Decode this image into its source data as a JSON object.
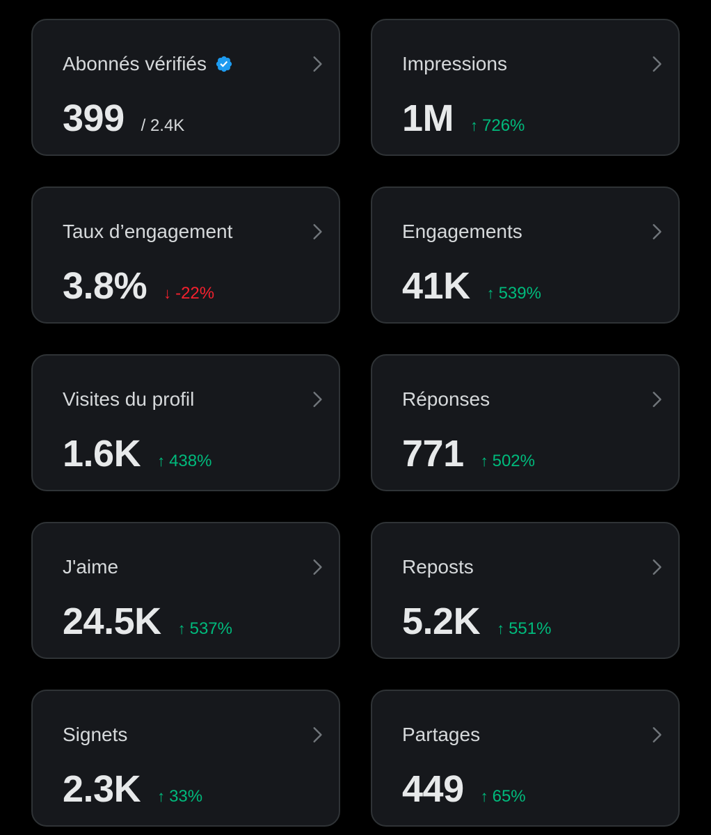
{
  "colors": {
    "background": "#000000",
    "card": "#16181c",
    "card_border": "#2f3336",
    "text": "#e7e9ea",
    "positive": "#00ba7c",
    "negative": "#f4212e",
    "verified": "#1d9bf0"
  },
  "cards": [
    {
      "label": "Abonnés vérifiés",
      "value": "399",
      "sub": "/ 2.4K",
      "trend": "neutral",
      "arrow": "",
      "icon": "verified-badge-icon"
    },
    {
      "label": "Impressions",
      "value": "1M",
      "sub": "726%",
      "trend": "up",
      "arrow": "↑"
    },
    {
      "label": "Taux d’engagement",
      "value": "3.8%",
      "sub": "-22%",
      "trend": "down",
      "arrow": "↓"
    },
    {
      "label": "Engagements",
      "value": "41K",
      "sub": "539%",
      "trend": "up",
      "arrow": "↑"
    },
    {
      "label": "Visites du profil",
      "value": "1.6K",
      "sub": "438%",
      "trend": "up",
      "arrow": "↑"
    },
    {
      "label": "Réponses",
      "value": "771",
      "sub": "502%",
      "trend": "up",
      "arrow": "↑"
    },
    {
      "label": "J'aime",
      "value": "24.5K",
      "sub": "537%",
      "trend": "up",
      "arrow": "↑"
    },
    {
      "label": "Reposts",
      "value": "5.2K",
      "sub": "551%",
      "trend": "up",
      "arrow": "↑"
    },
    {
      "label": "Signets",
      "value": "2.3K",
      "sub": "33%",
      "trend": "up",
      "arrow": "↑"
    },
    {
      "label": "Partages",
      "value": "449",
      "sub": "65%",
      "trend": "up",
      "arrow": "↑"
    }
  ]
}
